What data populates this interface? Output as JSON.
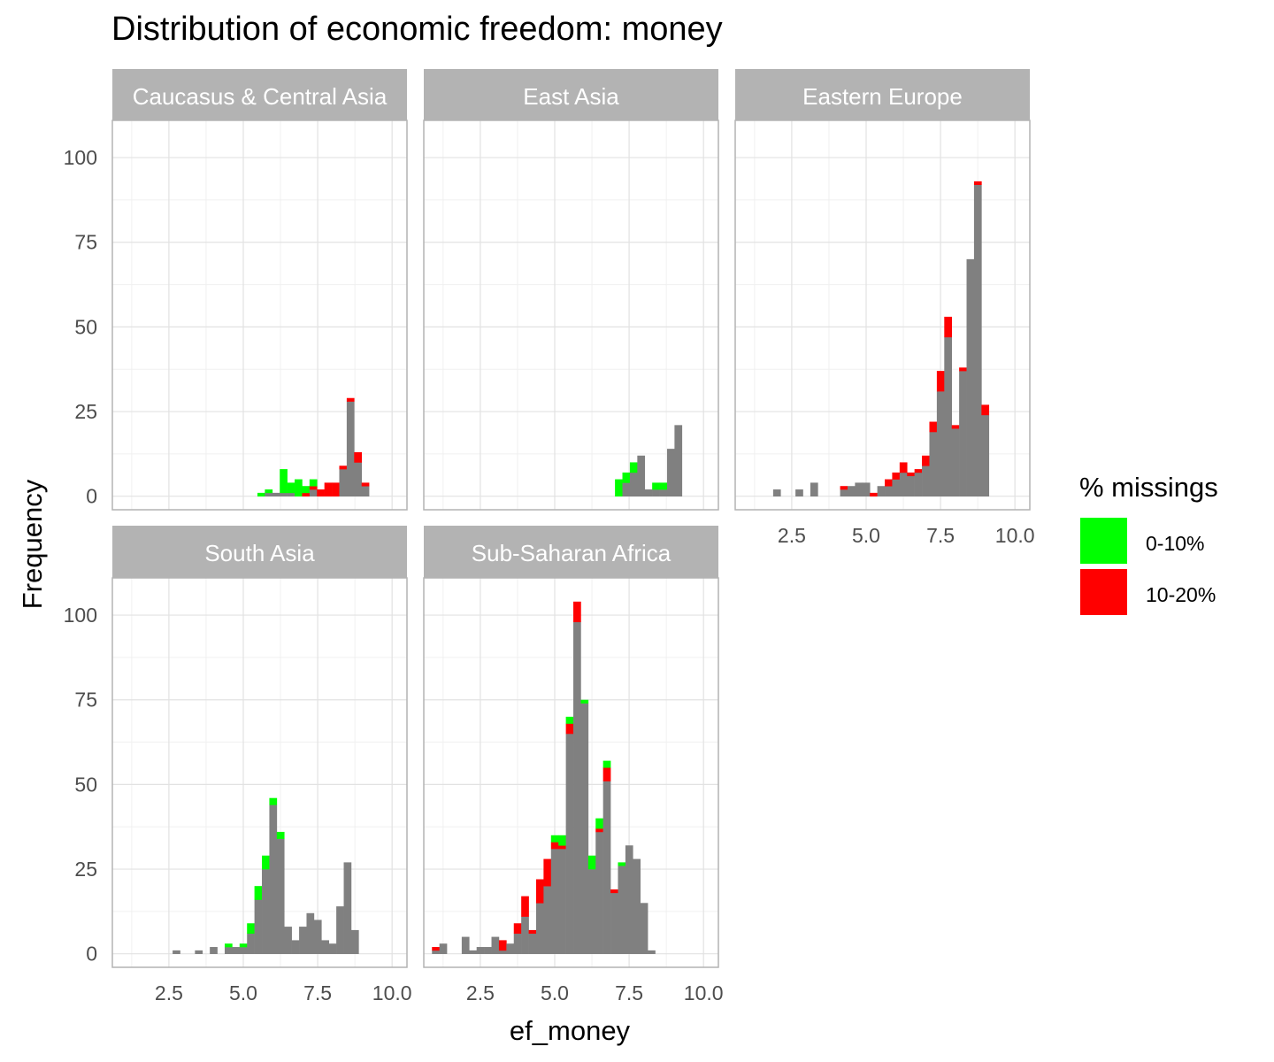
{
  "chart_data": {
    "type": "bar",
    "title": "Distribution of economic freedom: money",
    "xlabel": "ef_money",
    "ylabel": "Frequency",
    "xlim": [
      0.6,
      10.5
    ],
    "ylim": [
      -4,
      111
    ],
    "x_ticks": [
      "2.5",
      "5.0",
      "7.5",
      "10.0"
    ],
    "y_ticks": [
      "0",
      "25",
      "50",
      "75",
      "100"
    ],
    "grid": true,
    "legend": {
      "title": "% missings",
      "position": "right",
      "entries": [
        {
          "label": "0-10%",
          "color": "#00ff00"
        },
        {
          "label": "10-20%",
          "color": "#ff0000"
        }
      ]
    },
    "base_color": "#808080",
    "bin_width": 0.25,
    "panels": [
      {
        "name": "Caucasus & Central Asia",
        "bars": [
          {
            "x": 5.6,
            "base": 0,
            "g": 1,
            "r": 0
          },
          {
            "x": 5.85,
            "base": 1,
            "g": 1,
            "r": 0
          },
          {
            "x": 6.1,
            "base": 1,
            "g": 0,
            "r": 0
          },
          {
            "x": 6.35,
            "base": 1,
            "g": 7,
            "r": 0
          },
          {
            "x": 6.6,
            "base": 1,
            "g": 3,
            "r": 0
          },
          {
            "x": 6.85,
            "base": 0,
            "g": 5,
            "r": 0
          },
          {
            "x": 7.1,
            "base": 0,
            "g": 2,
            "r": 1
          },
          {
            "x": 7.35,
            "base": 2,
            "g": 2,
            "r": 1
          },
          {
            "x": 7.6,
            "base": 0,
            "g": 0,
            "r": 2
          },
          {
            "x": 7.85,
            "base": 0,
            "g": 0,
            "r": 4
          },
          {
            "x": 8.1,
            "base": 0,
            "g": 0,
            "r": 4
          },
          {
            "x": 8.35,
            "base": 8,
            "g": 0,
            "r": 1
          },
          {
            "x": 8.6,
            "base": 28,
            "g": 0,
            "r": 1
          },
          {
            "x": 8.85,
            "base": 10,
            "g": 0,
            "r": 3
          },
          {
            "x": 9.1,
            "base": 3,
            "g": 0,
            "r": 1
          }
        ]
      },
      {
        "name": "East Asia",
        "bars": [
          {
            "x": 7.15,
            "base": 0,
            "g": 5,
            "r": 0
          },
          {
            "x": 7.4,
            "base": 4,
            "g": 3,
            "r": 0
          },
          {
            "x": 7.65,
            "base": 7,
            "g": 3,
            "r": 0
          },
          {
            "x": 7.9,
            "base": 12,
            "g": 0,
            "r": 0
          },
          {
            "x": 8.15,
            "base": 2,
            "g": 0,
            "r": 0
          },
          {
            "x": 8.4,
            "base": 2,
            "g": 2,
            "r": 0
          },
          {
            "x": 8.65,
            "base": 2,
            "g": 2,
            "r": 0
          },
          {
            "x": 8.9,
            "base": 14,
            "g": 0,
            "r": 0
          },
          {
            "x": 9.15,
            "base": 21,
            "g": 0,
            "r": 0
          }
        ]
      },
      {
        "name": "Eastern Europe",
        "bars": [
          {
            "x": 2.0,
            "base": 2,
            "g": 0,
            "r": 0
          },
          {
            "x": 2.75,
            "base": 2,
            "g": 0,
            "r": 0
          },
          {
            "x": 3.25,
            "base": 4,
            "g": 0,
            "r": 0
          },
          {
            "x": 4.25,
            "base": 2,
            "g": 0,
            "r": 1
          },
          {
            "x": 4.5,
            "base": 3,
            "g": 0,
            "r": 0
          },
          {
            "x": 4.75,
            "base": 4,
            "g": 0,
            "r": 0
          },
          {
            "x": 5.0,
            "base": 4,
            "g": 0,
            "r": 0
          },
          {
            "x": 5.25,
            "base": 0,
            "g": 0,
            "r": 1
          },
          {
            "x": 5.5,
            "base": 3,
            "g": 0,
            "r": 0
          },
          {
            "x": 5.75,
            "base": 3,
            "g": 0,
            "r": 2
          },
          {
            "x": 6.0,
            "base": 5,
            "g": 0,
            "r": 2
          },
          {
            "x": 6.25,
            "base": 7,
            "g": 0,
            "r": 3
          },
          {
            "x": 6.5,
            "base": 6,
            "g": 0,
            "r": 1
          },
          {
            "x": 6.75,
            "base": 7,
            "g": 0,
            "r": 1
          },
          {
            "x": 7.0,
            "base": 9,
            "g": 0,
            "r": 3
          },
          {
            "x": 7.25,
            "base": 19,
            "g": 0,
            "r": 3
          },
          {
            "x": 7.5,
            "base": 31,
            "g": 0,
            "r": 6
          },
          {
            "x": 7.75,
            "base": 47,
            "g": 0,
            "r": 6
          },
          {
            "x": 8.0,
            "base": 20,
            "g": 0,
            "r": 1
          },
          {
            "x": 8.25,
            "base": 37,
            "g": 0,
            "r": 1
          },
          {
            "x": 8.5,
            "base": 70,
            "g": 0,
            "r": 0
          },
          {
            "x": 8.75,
            "base": 92,
            "g": 0,
            "r": 1
          },
          {
            "x": 9.0,
            "base": 24,
            "g": 0,
            "r": 3
          }
        ]
      },
      {
        "name": "South Asia",
        "bars": [
          {
            "x": 2.75,
            "base": 1,
            "g": 0,
            "r": 0
          },
          {
            "x": 3.5,
            "base": 1,
            "g": 0,
            "r": 0
          },
          {
            "x": 4.0,
            "base": 2,
            "g": 0,
            "r": 0
          },
          {
            "x": 4.5,
            "base": 2,
            "g": 1,
            "r": 0
          },
          {
            "x": 4.75,
            "base": 2,
            "g": 0,
            "r": 0
          },
          {
            "x": 5.0,
            "base": 2,
            "g": 1,
            "r": 0
          },
          {
            "x": 5.25,
            "base": 6,
            "g": 3,
            "r": 0
          },
          {
            "x": 5.5,
            "base": 16,
            "g": 4,
            "r": 0
          },
          {
            "x": 5.75,
            "base": 25,
            "g": 4,
            "r": 0
          },
          {
            "x": 6.0,
            "base": 44,
            "g": 2,
            "r": 0
          },
          {
            "x": 6.25,
            "base": 34,
            "g": 2,
            "r": 0
          },
          {
            "x": 6.5,
            "base": 8,
            "g": 0,
            "r": 0
          },
          {
            "x": 6.75,
            "base": 4,
            "g": 0,
            "r": 0
          },
          {
            "x": 7.0,
            "base": 8,
            "g": 0,
            "r": 0
          },
          {
            "x": 7.25,
            "base": 12,
            "g": 0,
            "r": 0
          },
          {
            "x": 7.5,
            "base": 10,
            "g": 0,
            "r": 0
          },
          {
            "x": 7.75,
            "base": 4,
            "g": 0,
            "r": 0
          },
          {
            "x": 8.0,
            "base": 3,
            "g": 0,
            "r": 0
          },
          {
            "x": 8.25,
            "base": 14,
            "g": 0,
            "r": 0
          },
          {
            "x": 8.5,
            "base": 27,
            "g": 0,
            "r": 0
          },
          {
            "x": 8.75,
            "base": 7,
            "g": 0,
            "r": 0
          }
        ]
      },
      {
        "name": "Sub-Saharan Africa",
        "bars": [
          {
            "x": 1.0,
            "base": 1,
            "g": 0,
            "r": 1
          },
          {
            "x": 1.25,
            "base": 3,
            "g": 0,
            "r": 0
          },
          {
            "x": 2.0,
            "base": 5,
            "g": 0,
            "r": 0
          },
          {
            "x": 2.25,
            "base": 1,
            "g": 0,
            "r": 0
          },
          {
            "x": 2.5,
            "base": 2,
            "g": 0,
            "r": 0
          },
          {
            "x": 2.75,
            "base": 2,
            "g": 0,
            "r": 0
          },
          {
            "x": 3.0,
            "base": 5,
            "g": 0,
            "r": 0
          },
          {
            "x": 3.25,
            "base": 1,
            "g": 0,
            "r": 3
          },
          {
            "x": 3.5,
            "base": 3,
            "g": 0,
            "r": 0
          },
          {
            "x": 3.75,
            "base": 6,
            "g": 0,
            "r": 3
          },
          {
            "x": 4.0,
            "base": 11,
            "g": 0,
            "r": 6
          },
          {
            "x": 4.25,
            "base": 6,
            "g": 0,
            "r": 1
          },
          {
            "x": 4.5,
            "base": 15,
            "g": 0,
            "r": 7
          },
          {
            "x": 4.75,
            "base": 20,
            "g": 0,
            "r": 8
          },
          {
            "x": 5.0,
            "base": 31,
            "g": 2,
            "r": 2
          },
          {
            "x": 5.25,
            "base": 31,
            "g": 3,
            "r": 1
          },
          {
            "x": 5.5,
            "base": 65,
            "g": 2,
            "r": 3
          },
          {
            "x": 5.75,
            "base": 98,
            "g": 0,
            "r": 6
          },
          {
            "x": 6.0,
            "base": 74,
            "g": 1,
            "r": 0
          },
          {
            "x": 6.25,
            "base": 25,
            "g": 4,
            "r": 0
          },
          {
            "x": 6.5,
            "base": 36,
            "g": 3,
            "r": 1
          },
          {
            "x": 6.75,
            "base": 51,
            "g": 2,
            "r": 4
          },
          {
            "x": 7.0,
            "base": 18,
            "g": 0,
            "r": 1
          },
          {
            "x": 7.25,
            "base": 26,
            "g": 1,
            "r": 0
          },
          {
            "x": 7.5,
            "base": 32,
            "g": 0,
            "r": 0
          },
          {
            "x": 7.75,
            "base": 28,
            "g": 0,
            "r": 0
          },
          {
            "x": 8.0,
            "base": 15,
            "g": 0,
            "r": 0
          },
          {
            "x": 8.25,
            "base": 1,
            "g": 0,
            "r": 0
          }
        ]
      }
    ]
  }
}
